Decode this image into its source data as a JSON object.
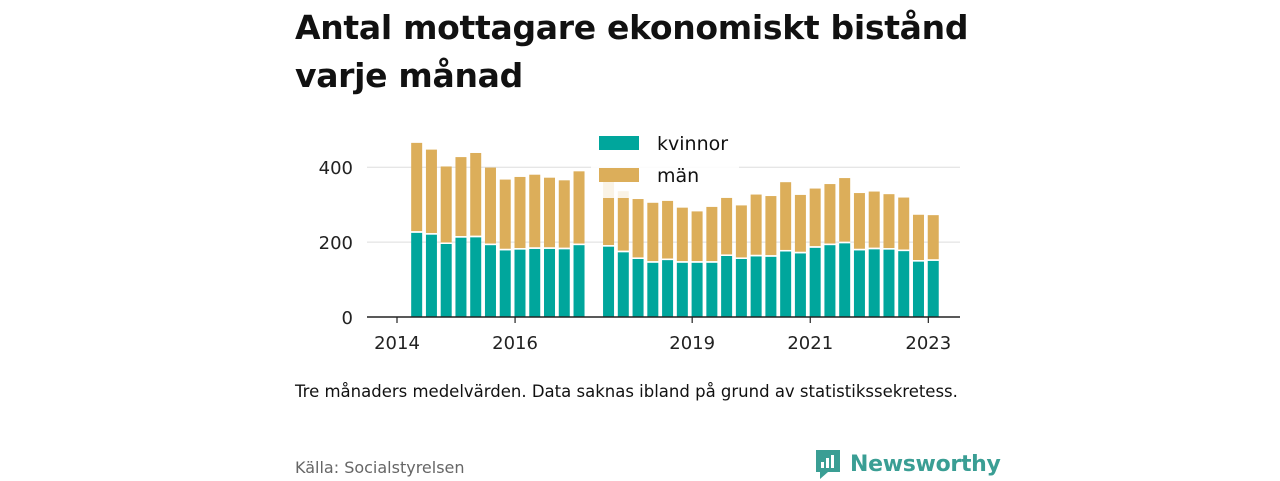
{
  "title": "Antal mottagare ekonomiskt bistånd varje månad",
  "note": "Tre månaders medelvärden. Data saknas ibland på grund av statistikssekretess.",
  "source": "Källa: Socialstyrelsen",
  "brand": "Newsworthy",
  "colors": {
    "kvinnor": "#00a69c",
    "man": "#dcae5a",
    "grid": "#dddddd",
    "axis": "#222222"
  },
  "chart_data": {
    "type": "bar",
    "stacked": true,
    "x": [
      "2014-05",
      "2014-08",
      "2014-11",
      "2015-02",
      "2015-05",
      "2015-08",
      "2015-11",
      "2016-02",
      "2016-05",
      "2016-08",
      "2016-11",
      "2017-02",
      "2017-08",
      "2017-11",
      "2018-02",
      "2018-05",
      "2018-08",
      "2018-11",
      "2019-02",
      "2019-05",
      "2019-08",
      "2019-11",
      "2020-02",
      "2020-05",
      "2020-08",
      "2020-11",
      "2021-02",
      "2021-05",
      "2021-08",
      "2021-11",
      "2022-02",
      "2022-05",
      "2022-08",
      "2022-11",
      "2023-02"
    ],
    "series": [
      {
        "name": "kvinnor",
        "values": [
          225,
          220,
          195,
          212,
          213,
          192,
          178,
          180,
          182,
          182,
          181,
          192,
          188,
          173,
          155,
          145,
          152,
          145,
          145,
          145,
          163,
          155,
          162,
          161,
          175,
          170,
          185,
          192,
          197,
          178,
          181,
          180,
          176,
          148,
          150
        ]
      },
      {
        "name": "män",
        "values": [
          240,
          227,
          207,
          215,
          225,
          207,
          189,
          194,
          198,
          190,
          184,
          197,
          178,
          163,
          160,
          160,
          158,
          147,
          137,
          149,
          156,
          143,
          165,
          162,
          185,
          156,
          158,
          163,
          174,
          153,
          154,
          148,
          143,
          125,
          122
        ]
      }
    ],
    "xticks": [
      "2014",
      "2016",
      "2019",
      "2021",
      "2023"
    ],
    "yticks": [
      0,
      200,
      400
    ],
    "ylim": [
      0,
      470
    ],
    "legend": "top-center",
    "grid": true
  }
}
